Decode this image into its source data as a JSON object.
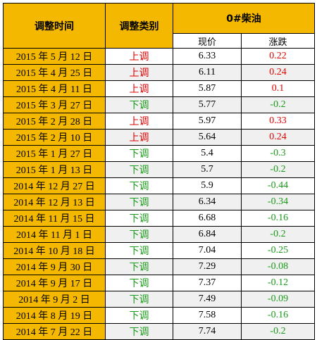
{
  "header": {
    "date_col": "调整时间",
    "type_col": "调整类别",
    "fuel_col": "0#柴油",
    "price_col": "现价",
    "change_col": "涨跌"
  },
  "colors": {
    "header_bg": "#f5b800",
    "up": "#e00000",
    "down": "#1a9a1a",
    "alt_row_bg": "#f0f0f0"
  },
  "rows": [
    {
      "date": "2015 年 5 月 12 日",
      "type": "上调",
      "price": "6.33",
      "change": "0.22"
    },
    {
      "date": "2015 年 4 月 25 日",
      "type": "上调",
      "price": "6.11",
      "change": "0.24"
    },
    {
      "date": "2015 年 4 月 11 日",
      "type": "上调",
      "price": "5.87",
      "change": "0.1"
    },
    {
      "date": "2015 年 3 月 27 日",
      "type": "下调",
      "price": "5.77",
      "change": "-0.2"
    },
    {
      "date": "2015 年 2 月 28 日",
      "type": "上调",
      "price": "5.97",
      "change": "0.33"
    },
    {
      "date": "2015 年 2 月 10 日",
      "type": "上调",
      "price": "5.64",
      "change": "0.24"
    },
    {
      "date": "2015 年 1 月 27 日",
      "type": "下调",
      "price": "5.4",
      "change": "-0.3"
    },
    {
      "date": "2015 年 1 月 13 日",
      "type": "下调",
      "price": "5.7",
      "change": "-0.2"
    },
    {
      "date": "2014 年 12 月 27 日",
      "type": "下调",
      "price": "5.9",
      "change": "-0.44"
    },
    {
      "date": "2014 年 12 月 13 日",
      "type": "下调",
      "price": "6.34",
      "change": "-0.34"
    },
    {
      "date": "2014 年 11 月 15 日",
      "type": "下调",
      "price": "6.68",
      "change": "-0.16"
    },
    {
      "date": "2014 年 11 月 1 日",
      "type": "下调",
      "price": "6.84",
      "change": "-0.2"
    },
    {
      "date": "2014 年 10 月 18 日",
      "type": "下调",
      "price": "7.04",
      "change": "-0.25"
    },
    {
      "date": "2014 年 9 月 30 日",
      "type": "下调",
      "price": "7.29",
      "change": "-0.08"
    },
    {
      "date": "2014 年 9 月 17 日",
      "type": "下调",
      "price": "7.37",
      "change": "-0.12"
    },
    {
      "date": "2014 年 9 月 2 日",
      "type": "下调",
      "price": "7.49",
      "change": "-0.09"
    },
    {
      "date": "2014 年 8 月 19 日",
      "type": "下调",
      "price": "7.58",
      "change": "-0.16"
    },
    {
      "date": "2014 年 7 月 22 日",
      "type": "下调",
      "price": "7.74",
      "change": "-0.2"
    }
  ]
}
